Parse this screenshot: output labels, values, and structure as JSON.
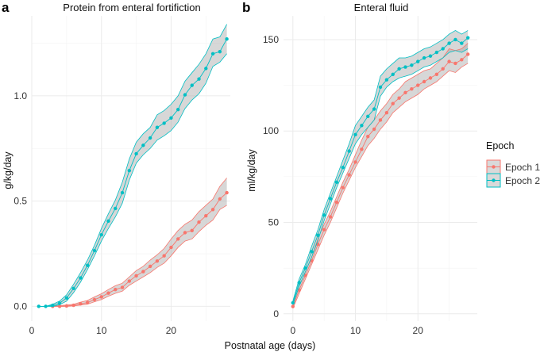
{
  "x_label": "Postnatal age (days)",
  "legend": {
    "title": "Epoch",
    "items": [
      {
        "label": "Epoch 1",
        "color": "#F8766D"
      },
      {
        "label": "Epoch 2",
        "color": "#00BFC4"
      }
    ]
  },
  "chart_data": [
    {
      "panel": "a",
      "type": "line",
      "title": "Protein from enteral fortifiction",
      "xlabel": "Postnatal age (days)",
      "ylabel": "g/kg/day",
      "xlim": [
        0,
        28.5
      ],
      "ylim": [
        -0.07,
        1.38
      ],
      "x_ticks": [
        "0",
        "10",
        "20"
      ],
      "y_ticks": [
        "0.0",
        "0.5",
        "1.0"
      ],
      "grid": true,
      "band": "confidence interval (grey ribbon)",
      "series": [
        {
          "name": "Epoch 1",
          "color": "#F8766D",
          "x": [
            3,
            4,
            5,
            6,
            7,
            8,
            9,
            10,
            11,
            12,
            13,
            14,
            15,
            16,
            17,
            18,
            19,
            20,
            21,
            22,
            23,
            24,
            25,
            26,
            27,
            28
          ],
          "y": [
            0,
            0,
            0.002,
            0.005,
            0.012,
            0.018,
            0.032,
            0.045,
            0.063,
            0.08,
            0.09,
            0.12,
            0.145,
            0.165,
            0.19,
            0.215,
            0.24,
            0.28,
            0.32,
            0.35,
            0.36,
            0.4,
            0.43,
            0.46,
            0.51,
            0.54
          ],
          "lower": [
            0,
            0,
            0,
            0.002,
            0.006,
            0.01,
            0.022,
            0.032,
            0.048,
            0.062,
            0.072,
            0.1,
            0.12,
            0.14,
            0.16,
            0.185,
            0.205,
            0.24,
            0.28,
            0.31,
            0.32,
            0.355,
            0.385,
            0.41,
            0.46,
            0.48
          ],
          "upper": [
            0.002,
            0.004,
            0.006,
            0.01,
            0.02,
            0.028,
            0.045,
            0.06,
            0.08,
            0.098,
            0.11,
            0.14,
            0.17,
            0.19,
            0.22,
            0.245,
            0.275,
            0.32,
            0.36,
            0.39,
            0.41,
            0.45,
            0.48,
            0.51,
            0.57,
            0.61
          ]
        },
        {
          "name": "Epoch 2",
          "color": "#00BFC4",
          "x": [
            1,
            2,
            3,
            4,
            5,
            6,
            7,
            8,
            9,
            10,
            11,
            12,
            13,
            14,
            15,
            16,
            17,
            18,
            19,
            20,
            21,
            22,
            23,
            24,
            25,
            26,
            27,
            28
          ],
          "y": [
            0,
            0,
            0.005,
            0.015,
            0.04,
            0.085,
            0.135,
            0.195,
            0.265,
            0.34,
            0.405,
            0.465,
            0.54,
            0.645,
            0.725,
            0.765,
            0.8,
            0.85,
            0.87,
            0.895,
            0.935,
            1.005,
            1.05,
            1.08,
            1.13,
            1.2,
            1.21,
            1.27
          ],
          "lower": [
            0,
            0,
            0,
            0.008,
            0.025,
            0.065,
            0.115,
            0.175,
            0.24,
            0.31,
            0.37,
            0.425,
            0.49,
            0.6,
            0.68,
            0.72,
            0.75,
            0.79,
            0.81,
            0.835,
            0.875,
            0.94,
            0.98,
            1.01,
            1.06,
            1.14,
            1.16,
            1.2
          ],
          "upper": [
            0,
            0,
            0.01,
            0.025,
            0.055,
            0.105,
            0.16,
            0.22,
            0.29,
            0.37,
            0.44,
            0.505,
            0.59,
            0.7,
            0.78,
            0.82,
            0.85,
            0.91,
            0.93,
            0.96,
            1.0,
            1.07,
            1.11,
            1.15,
            1.2,
            1.27,
            1.28,
            1.34
          ]
        }
      ]
    },
    {
      "panel": "b",
      "type": "line",
      "title": "Enteral fluid",
      "xlabel": "Postnatal age (days)",
      "ylabel": "ml/kg/day",
      "xlim": [
        -1.5,
        29.5
      ],
      "ylim": [
        -4,
        163
      ],
      "x_ticks": [
        "0",
        "10",
        "20"
      ],
      "y_ticks": [
        "0",
        "50",
        "100",
        "150"
      ],
      "grid": true,
      "band": "confidence interval (grey ribbon)",
      "series": [
        {
          "name": "Epoch 1",
          "color": "#F8766D",
          "x": [
            0,
            1,
            2,
            3,
            4,
            5,
            6,
            7,
            8,
            9,
            10,
            11,
            12,
            13,
            14,
            15,
            16,
            17,
            18,
            19,
            20,
            21,
            22,
            23,
            24,
            25,
            26,
            27,
            28
          ],
          "y": [
            4,
            13,
            21,
            29,
            38,
            46,
            53,
            61,
            69,
            76,
            83,
            90,
            97,
            101,
            106,
            110,
            115,
            118,
            121,
            123,
            125,
            127,
            129,
            131,
            134,
            138,
            137,
            139,
            142
          ],
          "lower": [
            3,
            11,
            19,
            27,
            35,
            43,
            50,
            58,
            66,
            73,
            80,
            86,
            92,
            96,
            101,
            105,
            110,
            113,
            116,
            118,
            120,
            123,
            125,
            127,
            130,
            133,
            132,
            135,
            137
          ],
          "upper": [
            5,
            15,
            23,
            31,
            41,
            49,
            56,
            64,
            72,
            79,
            87,
            95,
            102,
            106,
            111,
            115,
            120,
            123,
            127,
            129,
            131,
            133,
            134,
            137,
            140,
            145,
            144,
            145,
            148
          ]
        },
        {
          "name": "Epoch 2",
          "color": "#00BFC4",
          "x": [
            0,
            1,
            2,
            3,
            4,
            5,
            6,
            7,
            8,
            9,
            10,
            11,
            12,
            13,
            14,
            15,
            16,
            17,
            18,
            19,
            20,
            21,
            22,
            23,
            24,
            25,
            26,
            27,
            28
          ],
          "y": [
            6,
            17,
            25,
            34,
            43,
            54,
            63,
            72,
            80,
            89,
            98,
            103,
            108,
            112,
            124,
            128,
            131,
            134,
            135,
            136,
            138,
            140,
            141,
            143,
            145,
            148,
            150,
            148,
            151
          ],
          "lower": [
            5,
            15,
            23,
            31,
            40,
            51,
            60,
            69,
            77,
            85,
            93,
            98,
            102,
            106,
            119,
            124,
            127,
            129,
            130,
            131,
            133,
            135,
            136,
            138,
            140,
            143,
            144,
            143,
            145
          ],
          "upper": [
            7,
            19,
            27,
            37,
            46,
            57,
            66,
            75,
            84,
            93,
            103,
            108,
            113,
            117,
            130,
            134,
            137,
            140,
            140,
            141,
            143,
            145,
            146,
            148,
            150,
            153,
            155,
            153,
            155
          ]
        }
      ]
    }
  ]
}
